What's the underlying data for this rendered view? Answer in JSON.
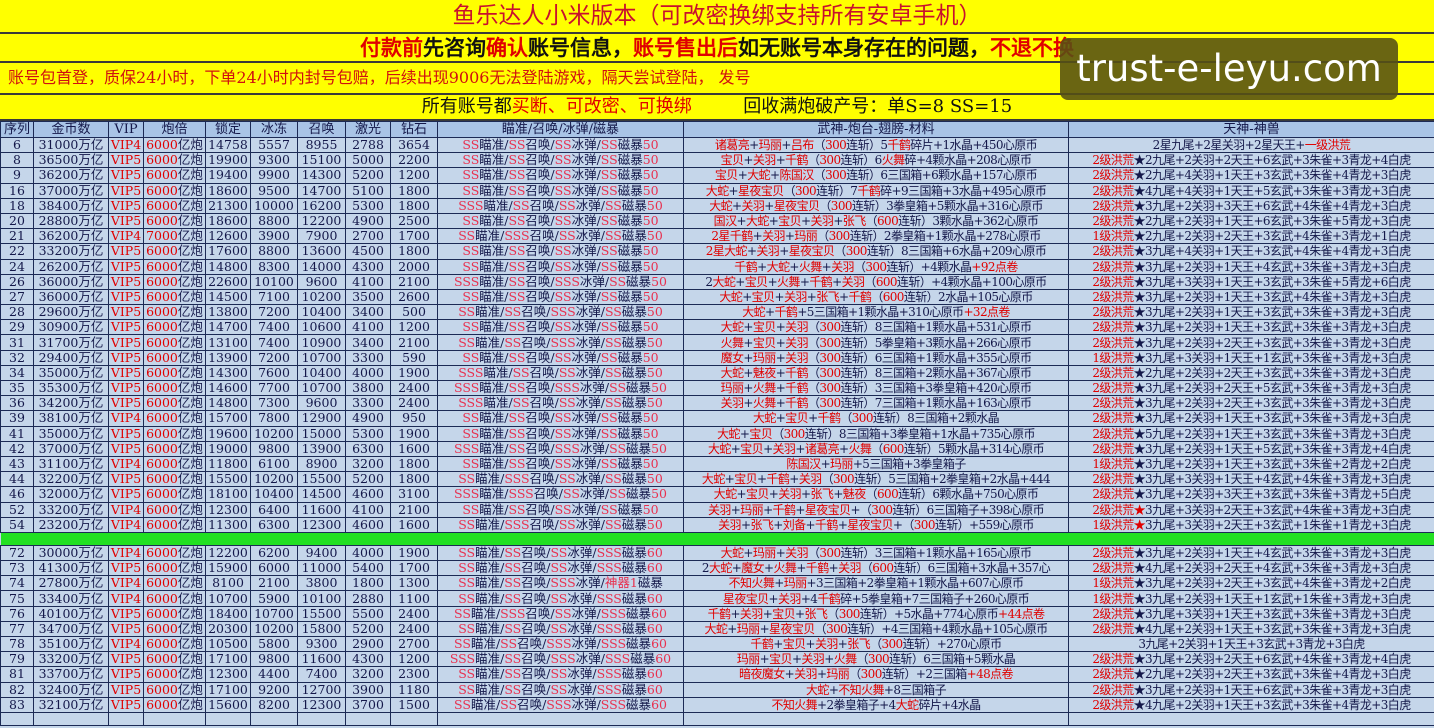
{
  "banner": {
    "title": "鱼乐达人小米版本（可改密换绑支持所有安卓手机）",
    "notice": [
      {
        "t": "付款前",
        "red": true
      },
      {
        "t": "先咨询",
        "red": false
      },
      {
        "t": "确认",
        "red": true
      },
      {
        "t": "账号信息，",
        "red": false
      },
      {
        "t": "账号售出后",
        "red": true
      },
      {
        "t": "如无账号本身存在的问题，",
        "red": false
      },
      {
        "t": "不退不换",
        "red": true
      }
    ],
    "warranty": "账号包首登，质保24小时，下单24小时内封号包赔，后续出现9006无法登陆游戏，隔天尝试登陆， 发号",
    "terms_prefix": "所有账号都",
    "terms_red": "买断、可改密、可换绑",
    "recycle": "回收满炮破产号：单S=8   SS=15"
  },
  "watermark": "trust-e-leyu.com",
  "colors": {
    "banner_bg": "#ffff00",
    "cell_bg": "#c5d6ea",
    "header_bg": "#a9c4e6",
    "separator": "#22e022",
    "accent_red": "#e00000"
  },
  "table": {
    "columns": [
      "序列",
      "金币数",
      "VIP",
      "炮倍",
      "锁定",
      "冰冻",
      "召唤",
      "激光",
      "钻石",
      "瞄准/召唤/冰弹/磁暴",
      "武神-炮台-翅膀-材料",
      "天神-神兽"
    ],
    "section1": [
      [
        "6",
        "31000万亿",
        "VIP4",
        "6000亿炮",
        "14758",
        "5557",
        "8955",
        "2788",
        "3654",
        "SS瞄准/SS召唤/SS冰弹/SS磁暴50",
        "诸葛亮+玛丽+吕布（300连斩）5千鹤碎片+1水晶+450心原币",
        "2星九尾+2星关羽+2星天王+一级洪荒"
      ],
      [
        "8",
        "36500万亿",
        "VIP5",
        "6000亿炮",
        "19900",
        "9300",
        "15100",
        "5000",
        "2200",
        "SS瞄准/SS召唤/SS冰弹/SS磁暴50",
        "宝贝+关羽+千鹤（300连斩）6火舞碎+4颗水晶+208心原币",
        "2级洪荒★2九尾+2关羽+2天王+6玄武+3朱雀+3青龙+4白虎"
      ],
      [
        "9",
        "36200万亿",
        "VIP5",
        "6000亿炮",
        "19400",
        "9900",
        "14300",
        "5200",
        "1200",
        "SS瞄准/SS召唤/SS冰弹/SS磁暴50",
        "宝贝+大蛇+陈国汉（300连斩）6三国箱+6颗水晶+157心原币",
        "2级洪荒★2九尾+4关羽+1天王+3玄武+3朱雀+4青龙+3白虎"
      ],
      [
        "16",
        "37000万亿",
        "VIP5",
        "6000亿炮",
        "18600",
        "9500",
        "14700",
        "5100",
        "1800",
        "SS瞄准/SS召唤/SS冰弹/SS磁暴50",
        "大蛇+星夜宝贝（300连斩）7千鹤碎+9三国箱+3水晶+495心原币",
        "2级洪荒★4九尾+4关羽+1天王+5玄武+3朱雀+3青龙+3白虎"
      ],
      [
        "18",
        "38400万亿",
        "VIP5",
        "6000亿炮",
        "21300",
        "10000",
        "16200",
        "5300",
        "1800",
        "SSS瞄准/SS召唤/SS冰弹/SS磁暴50",
        "大蛇+关羽+星夜宝贝（300连斩）3拳皇箱+5颗水晶+316心原币",
        "2级洪荒★3九尾+2关羽+3天王+6玄武+4朱雀+4青龙+3白虎"
      ],
      [
        "20",
        "28800万亿",
        "VIP5",
        "6000亿炮",
        "18600",
        "8800",
        "12200",
        "4900",
        "2500",
        "SS瞄准/SS召唤/SS冰弹/SS磁暴50",
        "国汉+大蛇+宝贝+关羽+张飞（600连斩）3颗水晶+362心原币",
        "2级洪荒★2九尾+2关羽+1天王+6玄武+3朱雀+5青龙+3白虎"
      ],
      [
        "21",
        "36200万亿",
        "VIP4",
        "7000亿炮",
        "12600",
        "3900",
        "7900",
        "2700",
        "1700",
        "SS瞄准/SSS召唤/SS冰弹/SS磁暴50",
        "2星千鹤+关羽+玛丽（300连斩）2拳皇箱+1颗水晶+278心原币",
        "1级洪荒★2九尾+2关羽+2天王+3玄武+4朱雀+3青龙+1白虎"
      ],
      [
        "22",
        "33200万亿",
        "VIP5",
        "6000亿炮",
        "17600",
        "8800",
        "13600",
        "4500",
        "1800",
        "SS瞄准/SS召唤/SS冰弹/SS磁暴50",
        "2星大蛇+关羽+星夜宝贝（300连斩）8三国箱+6水晶+209心原币",
        "2级洪荒★3九尾+4关羽+1天王+3玄武+4朱雀+4青龙+3白虎"
      ],
      [
        "24",
        "26200万亿",
        "VIP5",
        "6000亿炮",
        "14800",
        "8300",
        "14000",
        "4300",
        "2000",
        "SS瞄准/SS召唤/SS冰弹/SS磁暴50",
        "千鹤+大蛇+火舞+关羽（300连斩）+4颗水晶+92点卷",
        "2级洪荒★3九尾+2关羽+1天王+4玄武+3朱雀+3青龙+3白虎"
      ],
      [
        "26",
        "36000万亿",
        "VIP5",
        "6000亿炮",
        "22600",
        "10100",
        "9600",
        "4100",
        "2100",
        "SSS瞄准/SS召唤/SSS冰弹/SS磁暴50",
        "2大蛇+宝贝+火舞+千鹤+关羽（600连斩）+4颗水晶+100心原币",
        "2级洪荒★3九尾+3关羽+1天王+3玄武+3朱雀+5青龙+6白虎"
      ],
      [
        "27",
        "36000万亿",
        "VIP5",
        "6000亿炮",
        "14500",
        "7100",
        "10200",
        "3500",
        "2600",
        "SS瞄准/SS召唤/SS冰弹/SS磁暴50",
        "大蛇+宝贝+关羽+张飞+千鹤（600连斩）2水晶+105心原币",
        "2级洪荒★3九尾+2关羽+1天王+3玄武+4朱雀+3青龙+3白虎"
      ],
      [
        "28",
        "29600万亿",
        "VIP5",
        "6000亿炮",
        "13800",
        "7200",
        "10400",
        "3400",
        "500",
        "SS瞄准/SS召唤/SSS冰弹/SS磁暴50",
        "大蛇+千鹤+5三国箱+1颗水晶+310心原币+32点卷",
        "2级洪荒★3九尾+2关羽+1天王+3玄武+3朱雀+3青龙+3白虎"
      ],
      [
        "29",
        "30900万亿",
        "VIP5",
        "6000亿炮",
        "14700",
        "7400",
        "10600",
        "4100",
        "1200",
        "SS瞄准/SS召唤/SS冰弹/SS磁暴50",
        "大蛇+宝贝+关羽（300连斩）8三国箱+1颗水晶+531心原币",
        "2级洪荒★3九尾+2关羽+1天王+3玄武+3朱雀+3青龙+3白虎"
      ],
      [
        "31",
        "31700万亿",
        "VIP5",
        "6000亿炮",
        "13100",
        "7400",
        "10900",
        "3400",
        "2100",
        "SS瞄准/SS召唤/SSS冰弹/SS磁暴50",
        "火舞+宝贝+关羽（300连斩）5拳皇箱+3颗水晶+266心原币",
        "2级洪荒★3九尾+2关羽+2天王+3玄武+3朱雀+3青龙+3白虎"
      ],
      [
        "32",
        "29400万亿",
        "VIP5",
        "6000亿炮",
        "13900",
        "7200",
        "10700",
        "3300",
        "590",
        "SS瞄准/SS召唤/SS冰弹/SS磁暴50",
        "魔女+玛丽+关羽（300连斩）6三国箱+1颗水晶+355心原币",
        "1级洪荒★3九尾+3关羽+1天王+1玄武+3朱雀+3青龙+3白虎"
      ],
      [
        "34",
        "35000万亿",
        "VIP5",
        "6000亿炮",
        "14300",
        "7600",
        "10400",
        "4000",
        "1900",
        "SSS瞄准/SS召唤/SS冰弹/SS磁暴50",
        "大蛇+魅夜+千鹤（300连斩）8三国箱+2颗水晶+367心原币",
        "2级洪荒★2九尾+2关羽+2天王+3玄武+3朱雀+3青龙+3白虎"
      ],
      [
        "35",
        "35300万亿",
        "VIP5",
        "6000亿炮",
        "14600",
        "7700",
        "10700",
        "3800",
        "2400",
        "SSS瞄准/SS召唤/SSS冰弹/SS磁暴50",
        "玛丽+火舞+千鹤（300连斩）3三国箱+3拳皇箱+420心原币",
        "2级洪荒★3九尾+2关羽+2天王+5玄武+3朱雀+3青龙+3白虎"
      ],
      [
        "36",
        "34200万亿",
        "VIP5",
        "6000亿炮",
        "14800",
        "7300",
        "9600",
        "3300",
        "2400",
        "SSS瞄准/SS召唤/SS冰弹/SS磁暴50",
        "关羽+火舞+千鹤（300连斩）7三国箱+1颗水晶+163心原币",
        "2级洪荒★3九尾+2关羽+2天王+3玄武+3朱雀+3青龙+3白虎"
      ],
      [
        "39",
        "38100万亿",
        "VIP4",
        "6000亿炮",
        "15700",
        "7800",
        "12900",
        "4900",
        "950",
        "SS瞄准/SS召唤/SS冰弹/SS磁暴50",
        "大蛇+宝贝+千鹤（300连斩）8三国箱+2颗水晶",
        "2级洪荒★3九尾+2关羽+1天王+3玄武+3朱雀+3青龙+3白虎"
      ],
      [
        "41",
        "35000万亿",
        "VIP5",
        "6000亿炮",
        "19600",
        "10200",
        "15000",
        "5300",
        "1900",
        "SS瞄准/SS召唤/SS冰弹/SS磁暴50",
        "大蛇+宝贝（300连斩）8三国箱+3拳皇箱+1水晶+735心原币",
        "2级洪荒★5九尾+2关羽+1天王+3玄武+3朱雀+3青龙+3白虎"
      ],
      [
        "42",
        "37000万亿",
        "VIP5",
        "6000亿炮",
        "19000",
        "9800",
        "13900",
        "6300",
        "1600",
        "SSS瞄准/SS召唤/SSS冰弹/SS磁暴50",
        "大蛇+宝贝+关羽+诸葛亮+火舞（600连斩）5颗水晶+314心原币",
        "2级洪荒★3九尾+2关羽+1天王+5玄武+3朱雀+3青龙+4白虎"
      ],
      [
        "43",
        "31100万亿",
        "VIP4",
        "6000亿炮",
        "11800",
        "6100",
        "8900",
        "3200",
        "1800",
        "SS瞄准/SS召唤/SS冰弹/SS磁暴50",
        "陈国汉+玛丽+5三国箱+3拳皇箱子",
        "1级洪荒★3九尾+2关羽+1天王+3玄武+3朱雀+2青龙+2白虎"
      ],
      [
        "44",
        "32200万亿",
        "VIP5",
        "6000亿炮",
        "15500",
        "10200",
        "15500",
        "5200",
        "1800",
        "SS瞄准/SSS召唤/SS冰弹/SS磁暴50",
        "大蛇+宝贝+千鹤+关羽（300连斩）5三国箱+2拳皇箱+2水晶+444",
        "2级洪荒★3九尾+3关羽+1天王+4玄武+4朱雀+3青龙+3白虎"
      ],
      [
        "46",
        "32000万亿",
        "VIP5",
        "6000亿炮",
        "18100",
        "10400",
        "14500",
        "4600",
        "3100",
        "SSS瞄准/SSS召唤/SS冰弹/SS磁暴50",
        "大蛇+宝贝+关羽+张飞+魅夜（600连斩）6颗水晶+750心原币",
        "2级洪荒★3九尾+2关羽+3天王+3玄武+3朱雀+3青龙+5白虎"
      ],
      [
        "52",
        "33200万亿",
        "VIP4",
        "6000亿炮",
        "12300",
        "6400",
        "11600",
        "4100",
        "2100",
        "SS瞄准/SS召唤/SS冰弹/SS磁暴50",
        "关羽+玛丽+千鹤+星夜宝贝+（300连斩）6三国箱子+398心原币",
        "2级洪荒☆3九尾+3关羽+2天王+3玄武+4朱雀+3青龙+3白虎"
      ],
      [
        "54",
        "23200万亿",
        "VIP4",
        "6000亿炮",
        "11300",
        "6300",
        "12300",
        "4600",
        "1600",
        "SS瞄准/SSS召唤/SS冰弹/SS磁暴50",
        "关羽+张飞+刘备+千鹤+星夜宝贝+（300连斩）+559心原币",
        "1级洪荒☆3九尾+3关羽+2天王+3玄武+1朱雀+1青龙+3白虎"
      ]
    ],
    "section2": [
      [
        "72",
        "30000万亿",
        "VIP4",
        "6000亿炮",
        "12200",
        "6200",
        "9400",
        "4000",
        "1900",
        "SS瞄准/SS召唤/SS冰弹/SSS磁暴60",
        "大蛇+玛丽+关羽（300连斩）3三国箱+1颗水晶+165心原币",
        "2级洪荒★3九尾+2关羽+1天王+4玄武+3朱雀+3青龙+3白虎"
      ],
      [
        "73",
        "41300万亿",
        "VIP5",
        "6000亿炮",
        "15900",
        "6000",
        "11000",
        "5400",
        "1700",
        "SS瞄准/SS召唤/SS冰弹/SSS磁暴60",
        "2大蛇+魔女+火舞+千鹤+关羽（600连斩）6三国箱+3水晶+357心",
        "2级洪荒★4九尾+2关羽+2天王+4玄武+3朱雀+3青龙+3白虎"
      ],
      [
        "74",
        "27800万亿",
        "VIP4",
        "6000亿炮",
        "8100",
        "2100",
        "3800",
        "1800",
        "1300",
        "SS瞄准/SS召唤/SSS冰弹/神器1磁暴",
        "不知火舞+玛丽+3三国箱+2拳皇箱+1颗水晶+607心原币",
        "1级洪荒★3九尾+2关羽+2天王+3玄武+4朱雀+3青龙+2白虎"
      ],
      [
        "75",
        "33400万亿",
        "VIP4",
        "6000亿炮",
        "10700",
        "5900",
        "10100",
        "2880",
        "1100",
        "SS瞄准/SS召唤/SS冰弹/SSS磁暴60",
        "星夜宝贝+关羽+4千鹤碎+5拳皇箱+7三国箱子+260心原币",
        "1级洪荒★3九尾+2关羽+1天王+1玄武+1朱雀+3青龙+3白虎"
      ],
      [
        "76",
        "40100万亿",
        "VIP5",
        "6000亿炮",
        "18400",
        "10700",
        "15500",
        "5500",
        "2400",
        "SS瞄准/SSS召唤/SS冰弹/SSS磁暴60",
        "千鹤+关羽+宝贝+张飞（300连斩）+5水晶+774心原币+44点卷",
        "2级洪荒★3九尾+3关羽+1天王+3玄武+3朱雀+3青龙+3白虎"
      ],
      [
        "77",
        "34700万亿",
        "VIP5",
        "6000亿炮",
        "20300",
        "10200",
        "15800",
        "5200",
        "2400",
        "SS瞄准/SS召唤/SS冰弹/SSS磁暴60",
        "大蛇+玛丽+星夜宝贝（300连斩）+4三国箱+4颗水晶+105心原币",
        "2级洪荒★4九尾+2关羽+1天王+3玄武+3朱雀+3青龙+3白虎"
      ],
      [
        "78",
        "35100万亿",
        "VIP4",
        "6000亿炮",
        "10500",
        "5800",
        "9300",
        "2900",
        "2700",
        "SS瞄准/SS召唤/SSS冰弹/SSS磁暴60",
        "千鹤+宝贝+关羽+张飞（300连斩）+270心原币",
        "3九尾+2关羽+1天王+3玄武+3青龙+3白虎"
      ],
      [
        "79",
        "33200万亿",
        "VIP5",
        "6000亿炮",
        "17100",
        "9800",
        "11600",
        "4300",
        "1200",
        "SSS瞄准/SS召唤/SSS冰弹/SSS磁暴60",
        "玛丽+宝贝+关羽+火舞（300连斩）6三国箱+5颗水晶",
        "2级洪荒★3九尾+2关羽+2天王+6玄武+4朱雀+3青龙+4白虎"
      ],
      [
        "81",
        "33700万亿",
        "VIP5",
        "6000亿炮",
        "12300",
        "4400",
        "7400",
        "3200",
        "2300",
        "SS瞄准/SS召唤/SS冰弹/SSS磁暴60",
        "暗夜魔女+关羽+玛丽（300连斩）+2三国箱+48点卷",
        "2级洪荒★2九尾+2关羽+2天王+3玄武+3朱雀+4青龙+3白虎"
      ],
      [
        "82",
        "32400万亿",
        "VIP5",
        "6000亿炮",
        "17100",
        "9200",
        "12700",
        "3900",
        "1180",
        "SS瞄准/SS召唤/SS冰弹/SSS磁暴60",
        "大蛇+不知火舞+8三国箱子",
        "2级洪荒★3九尾+2关羽+1天王+6玄武+3朱雀+3青龙+3白虎"
      ],
      [
        "83",
        "32100万亿",
        "VIP5",
        "6000亿炮",
        "15600",
        "8200",
        "12300",
        "3700",
        "1500",
        "SS瞄准/SS召唤/SSS冰弹/SSS磁暴60",
        "不知火舞+2拳皇箱子+4大蛇碎片+4水晶",
        "2级洪荒★4九尾+2关羽+1天王+3玄武+3朱雀+4青龙+3白虎"
      ]
    ]
  }
}
